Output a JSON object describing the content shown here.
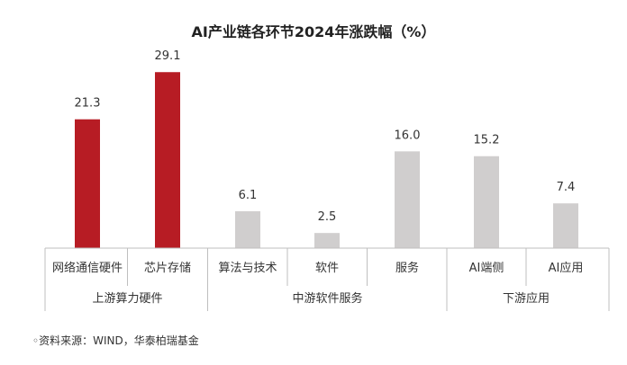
{
  "chart_data": {
    "type": "bar",
    "title": "AI产业链各环节2024年涨跌幅（%）",
    "categories": [
      "网络通信硬件",
      "芯片存储",
      "算法与技术",
      "软件",
      "服务",
      "AI端侧",
      "AI应用"
    ],
    "values": [
      21.3,
      29.1,
      6.1,
      2.5,
      16.0,
      15.2,
      7.4
    ],
    "value_labels": [
      "21.3",
      "29.1",
      "6.1",
      "2.5",
      "16.0",
      "15.2",
      "7.4"
    ],
    "groups": [
      {
        "label": "上游算力硬件",
        "count": 2
      },
      {
        "label": "中游软件服务",
        "count": 3
      },
      {
        "label": "下游应用",
        "count": 2
      }
    ],
    "highlight_color": "#b71c24",
    "default_color": "#d0cece",
    "highlight_indices": [
      0,
      1
    ],
    "ylim": [
      0,
      33
    ],
    "grid": false,
    "legend": "none"
  },
  "source": "资料来源：WIND，华泰柏瑞基金"
}
